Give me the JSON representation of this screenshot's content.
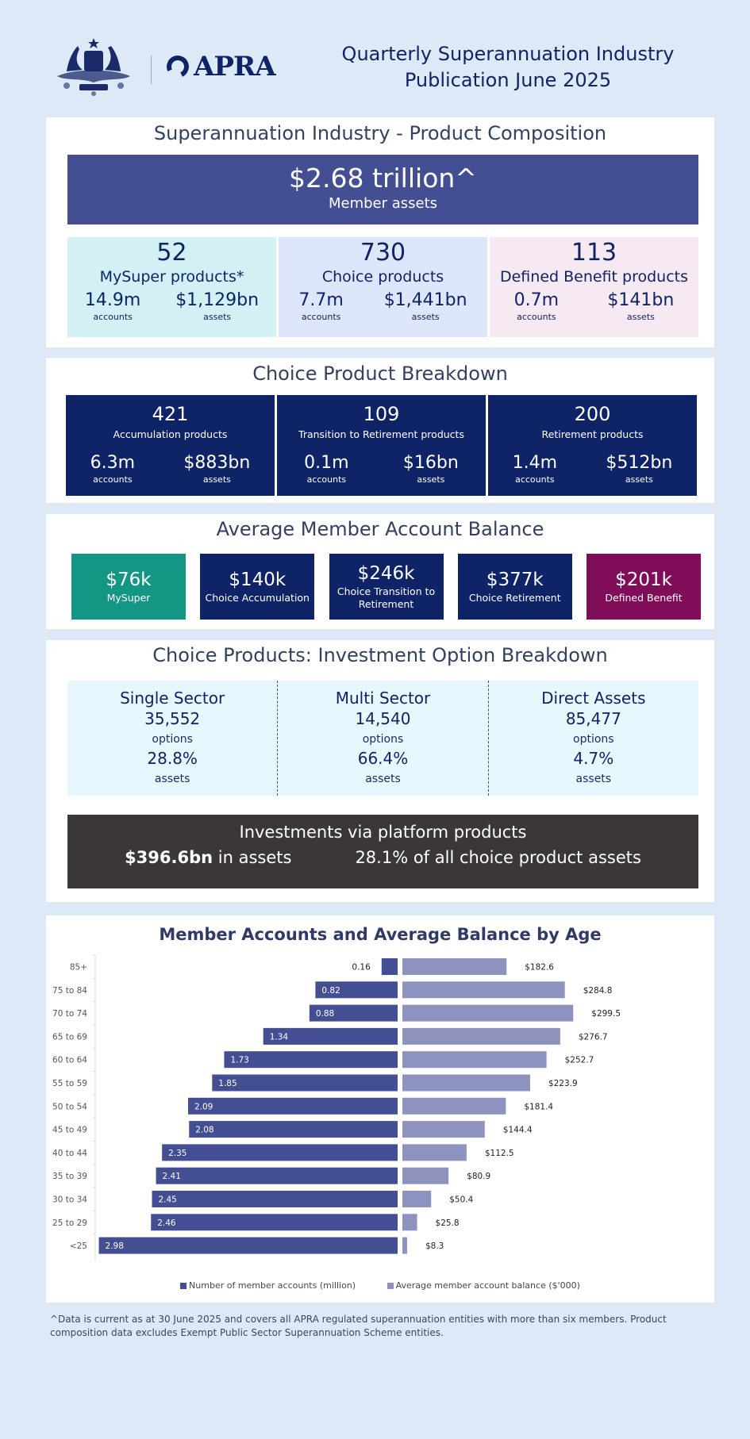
{
  "header": {
    "logo_text": "APRA",
    "title_line1": "Quarterly Superannuation Industry",
    "title_line2": "Publication June 2025"
  },
  "composition": {
    "title": "Superannuation Industry - Product Composition",
    "total_value": "$2.68 trillion^",
    "total_label": "Member assets",
    "products": [
      {
        "count": "52",
        "label": "MySuper products*",
        "accounts": "14.9m",
        "accounts_label": "accounts",
        "assets": "$1,129bn",
        "assets_label": "assets",
        "color": "#d3f1f4"
      },
      {
        "count": "730",
        "label": "Choice products",
        "accounts": "7.7m",
        "accounts_label": "accounts",
        "assets": "$1,441bn",
        "assets_label": "assets",
        "color": "#dee6fb"
      },
      {
        "count": "113",
        "label": "Defined Benefit products",
        "accounts": "0.7m",
        "accounts_label": "accounts",
        "assets": "$141bn",
        "assets_label": "assets",
        "color": "#f6e9f2"
      }
    ]
  },
  "choice_breakdown": {
    "title": "Choice Product Breakdown",
    "items": [
      {
        "count": "421",
        "label": "Accumulation products",
        "accounts": "6.3m",
        "accounts_label": "accounts",
        "assets": "$883bn",
        "assets_label": "assets"
      },
      {
        "count": "109",
        "label": "Transition to Retirement products",
        "accounts": "0.1m",
        "accounts_label": "accounts",
        "assets": "$16bn",
        "assets_label": "assets"
      },
      {
        "count": "200",
        "label": "Retirement products",
        "accounts": "1.4m",
        "accounts_label": "accounts",
        "assets": "$512bn",
        "assets_label": "assets"
      }
    ]
  },
  "avg_balance": {
    "title": "Average Member Account Balance",
    "items": [
      {
        "value": "$76k",
        "label": "MySuper",
        "color": "#149684"
      },
      {
        "value": "$140k",
        "label": "Choice Accumulation",
        "color": "#0f2466"
      },
      {
        "value": "$246k",
        "label": "Choice Transition to Retirement",
        "color": "#0f2466"
      },
      {
        "value": "$377k",
        "label": "Choice Retirement",
        "color": "#0f2466"
      },
      {
        "value": "$201k",
        "label": "Defined Benefit",
        "color": "#800d57"
      }
    ]
  },
  "investment_options": {
    "title": "Choice Products: Investment Option Breakdown",
    "items": [
      {
        "heading": "Single Sector",
        "options": "35,552",
        "options_label": "options",
        "assets_pct": "28.8%",
        "assets_label": "assets"
      },
      {
        "heading": "Multi Sector",
        "options": "14,540",
        "options_label": "options",
        "assets_pct": "66.4%",
        "assets_label": "assets"
      },
      {
        "heading": "Direct Assets",
        "options": "85,477",
        "options_label": "options",
        "assets_pct": "4.7%",
        "assets_label": "assets"
      }
    ],
    "platform": {
      "title": "Investments via platform products",
      "assets_value": "$396.6bn",
      "assets_suffix": " in assets",
      "share": "28.1% of all choice product assets"
    }
  },
  "chart_data": {
    "type": "bar",
    "title": "Member Accounts and Average Balance by Age",
    "orientation": "horizontal-butterfly",
    "categories": [
      "85+",
      "75 to 84",
      "70 to 74",
      "65 to 69",
      "60 to 64",
      "55 to 59",
      "50 to 54",
      "45 to 49",
      "40 to 44",
      "35 to 39",
      "30 to 34",
      "25 to 29",
      "<25"
    ],
    "series": [
      {
        "name": "Number of member accounts (million)",
        "color": "#444f93",
        "direction": "left",
        "values": [
          0.16,
          0.82,
          0.88,
          1.34,
          1.73,
          1.85,
          2.09,
          2.08,
          2.35,
          2.41,
          2.45,
          2.46,
          2.98
        ],
        "labels": [
          "0.16",
          "0.82",
          "0.88",
          "1.34",
          "1.73",
          "1.85",
          "2.09",
          "2.08",
          "2.35",
          "2.41",
          "2.45",
          "2.46",
          "2.98"
        ]
      },
      {
        "name": "Average member account balance ($'000)",
        "color": "#8e92bf",
        "direction": "right",
        "values": [
          182.6,
          284.8,
          299.5,
          276.7,
          252.7,
          223.9,
          181.4,
          144.4,
          112.5,
          80.9,
          50.4,
          25.8,
          8.3
        ],
        "labels": [
          "$182.6",
          "$284.8",
          "$299.5",
          "$276.7",
          "$252.7",
          "$223.9",
          "$181.4",
          "$144.4",
          "$112.5",
          "$80.9",
          "$50.4",
          "$25.8",
          "$8.3"
        ]
      }
    ],
    "xlim_left": [
      0,
      3.0
    ],
    "xlim_right": [
      0,
      320
    ],
    "grid": false,
    "legend": "bottom"
  },
  "footnote": "^Data is current as at 30 June 2025 and covers all APRA regulated superannuation entities with more than six members.  Product composition data excludes Exempt Public Sector Superannuation Scheme entities."
}
